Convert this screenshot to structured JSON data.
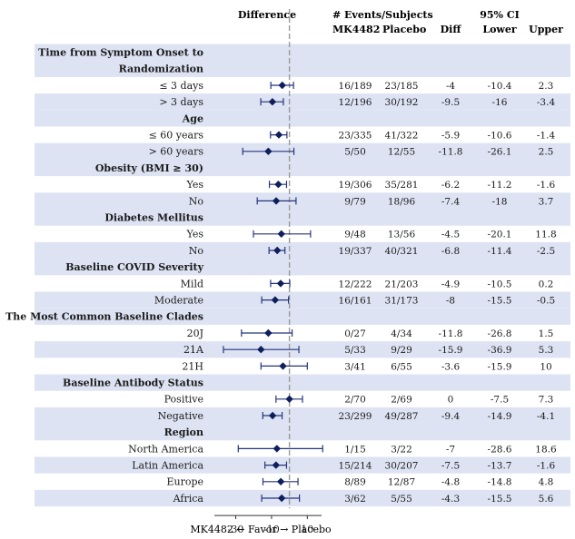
{
  "headers": {
    "difference": "Difference",
    "events_subjects": "# Events/Subjects",
    "ci": "95% CI",
    "mk": "MK4482",
    "placebo": "Placebo",
    "diff": "Diff",
    "lower": "Lower",
    "upper": "Upper"
  },
  "axis_caption": "MK4482 ← Favor → Placebo",
  "chart_data": {
    "type": "forest",
    "x_ticks": [
      -30,
      -10,
      10
    ],
    "x_range": [
      -45,
      20
    ],
    "reference_line": 0,
    "groups": [
      {
        "title": [
          "Time from Symptom Onset to",
          "Randomization"
        ],
        "rows": [
          {
            "label": "≤ 3 days",
            "mk": "16/189",
            "placebo": "23/185",
            "diff": "-4",
            "lower": "-10.4",
            "upper": "2.3",
            "estimate": -4,
            "ci": [
              -10.4,
              2.3
            ]
          },
          {
            "label": "> 3 days",
            "mk": "12/196",
            "placebo": "30/192",
            "diff": "-9.5",
            "lower": "-16",
            "upper": "-3.4",
            "estimate": -9.5,
            "ci": [
              -16,
              -3.4
            ]
          }
        ]
      },
      {
        "title": [
          "Age"
        ],
        "rows": [
          {
            "label": "≤ 60 years",
            "mk": "23/335",
            "placebo": "41/322",
            "diff": "-5.9",
            "lower": "-10.6",
            "upper": "-1.4",
            "estimate": -5.9,
            "ci": [
              -10.6,
              -1.4
            ]
          },
          {
            "label": "> 60 years",
            "mk": "5/50",
            "placebo": "12/55",
            "diff": "-11.8",
            "lower": "-26.1",
            "upper": "2.5",
            "estimate": -11.8,
            "ci": [
              -26.1,
              2.5
            ]
          }
        ]
      },
      {
        "title": [
          "Obesity (BMI ≥ 30)"
        ],
        "rows": [
          {
            "label": "Yes",
            "mk": "19/306",
            "placebo": "35/281",
            "diff": "-6.2",
            "lower": "-11.2",
            "upper": "-1.6",
            "estimate": -6.2,
            "ci": [
              -11.2,
              -1.6
            ]
          },
          {
            "label": "No",
            "mk": "9/79",
            "placebo": "18/96",
            "diff": "-7.4",
            "lower": "-18",
            "upper": "3.7",
            "estimate": -7.4,
            "ci": [
              -18,
              3.7
            ]
          }
        ]
      },
      {
        "title": [
          "Diabetes Mellitus"
        ],
        "rows": [
          {
            "label": "Yes",
            "mk": "9/48",
            "placebo": "13/56",
            "diff": "-4.5",
            "lower": "-20.1",
            "upper": "11.8",
            "estimate": -4.5,
            "ci": [
              -20.1,
              11.8
            ]
          },
          {
            "label": "No",
            "mk": "19/337",
            "placebo": "40/321",
            "diff": "-6.8",
            "lower": "-11.4",
            "upper": "-2.5",
            "estimate": -6.8,
            "ci": [
              -11.4,
              -2.5
            ]
          }
        ]
      },
      {
        "title": [
          "Baseline COVID Severity"
        ],
        "rows": [
          {
            "label": "Mild",
            "mk": "12/222",
            "placebo": "21/203",
            "diff": "-4.9",
            "lower": "-10.5",
            "upper": "0.2",
            "estimate": -4.9,
            "ci": [
              -10.5,
              0.2
            ]
          },
          {
            "label": "Moderate",
            "mk": "16/161",
            "placebo": "31/173",
            "diff": "-8",
            "lower": "-15.5",
            "upper": "-0.5",
            "estimate": -8,
            "ci": [
              -15.5,
              -0.5
            ]
          }
        ]
      },
      {
        "title": [
          "The Most Common Baseline Clades"
        ],
        "rows": [
          {
            "label": "20J",
            "mk": "0/27",
            "placebo": "4/34",
            "diff": "-11.8",
            "lower": "-26.8",
            "upper": "1.5",
            "estimate": -11.8,
            "ci": [
              -26.8,
              1.5
            ]
          },
          {
            "label": "21A",
            "mk": "5/33",
            "placebo": "9/29",
            "diff": "-15.9",
            "lower": "-36.9",
            "upper": "5.3",
            "estimate": -15.9,
            "ci": [
              -36.9,
              5.3
            ]
          },
          {
            "label": "21H",
            "mk": "3/41",
            "placebo": "6/55",
            "diff": "-3.6",
            "lower": "-15.9",
            "upper": "10",
            "estimate": -3.6,
            "ci": [
              -15.9,
              10
            ]
          }
        ]
      },
      {
        "title": [
          "Baseline Antibody Status"
        ],
        "rows": [
          {
            "label": "Positive",
            "mk": "2/70",
            "placebo": "2/69",
            "diff": "0",
            "lower": "-7.5",
            "upper": "7.3",
            "estimate": 0,
            "ci": [
              -7.5,
              7.3
            ]
          },
          {
            "label": "Negative",
            "mk": "23/299",
            "placebo": "49/287",
            "diff": "-9.4",
            "lower": "-14.9",
            "upper": "-4.1",
            "estimate": -9.4,
            "ci": [
              -14.9,
              -4.1
            ]
          }
        ]
      },
      {
        "title": [
          "Region"
        ],
        "rows": [
          {
            "label": "North America",
            "mk": "1/15",
            "placebo": "3/22",
            "diff": "-7",
            "lower": "-28.6",
            "upper": "18.6",
            "estimate": -7,
            "ci": [
              -28.6,
              18.6
            ]
          },
          {
            "label": "Latin America",
            "mk": "15/214",
            "placebo": "30/207",
            "diff": "-7.5",
            "lower": "-13.7",
            "upper": "-1.6",
            "estimate": -7.5,
            "ci": [
              -13.7,
              -1.6
            ]
          },
          {
            "label": "Europe",
            "mk": "8/89",
            "placebo": "12/87",
            "diff": "-4.8",
            "lower": "-14.8",
            "upper": "4.8",
            "estimate": -4.8,
            "ci": [
              -14.8,
              4.8
            ]
          },
          {
            "label": "Africa",
            "mk": "3/62",
            "placebo": "5/55",
            "diff": "-4.3",
            "lower": "-15.5",
            "upper": "5.6",
            "estimate": -4.3,
            "ci": [
              -15.5,
              5.6
            ]
          }
        ]
      }
    ]
  },
  "colors": {
    "band": "#dde3f3",
    "marker": "#0f1f5c",
    "ci_line": "#24357a",
    "ref_line": "#999999",
    "text": "#1a1a1a"
  }
}
